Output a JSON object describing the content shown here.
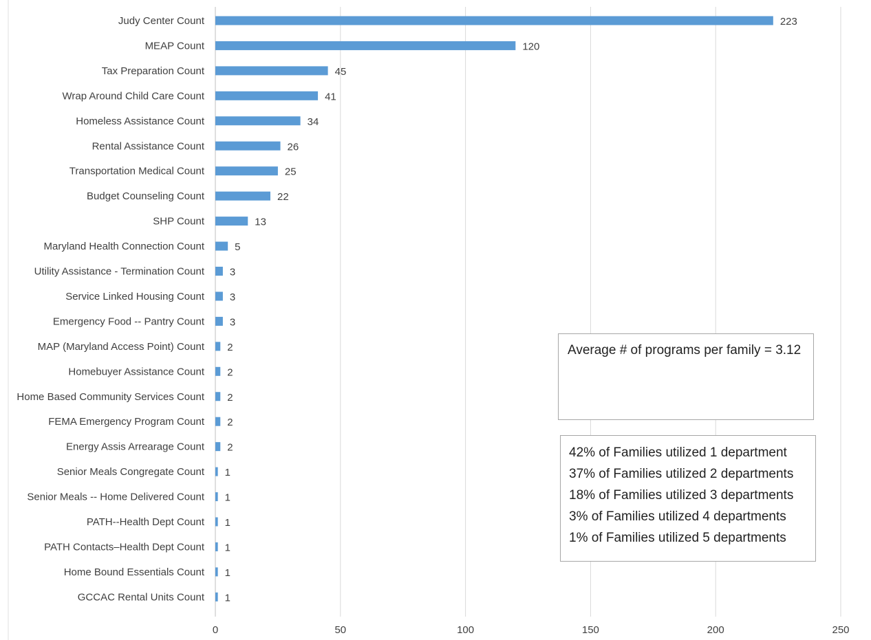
{
  "chart_data": {
    "type": "bar",
    "orientation": "horizontal",
    "categories": [
      "Judy Center Count",
      "MEAP Count",
      "Tax Preparation Count",
      "Wrap Around Child Care Count",
      "Homeless Assistance Count",
      "Rental Assistance Count",
      "Transportation Medical Count",
      "Budget Counseling Count",
      "SHP Count",
      "Maryland Health Connection Count",
      "Utility Assistance - Termination Count",
      "Service Linked Housing Count",
      "Emergency Food -- Pantry Count",
      "MAP (Maryland Access Point) Count",
      "Homebuyer Assistance Count",
      "Home Based Community Services Count",
      "FEMA Emergency Program Count",
      "Energy Assis Arrearage Count",
      "Senior Meals Congregate Count",
      "Senior Meals -- Home Delivered Count",
      "PATH--Health Dept Count",
      "PATH Contacts–Health Dept Count",
      "Home Bound Essentials Count",
      "GCCAC Rental Units Count"
    ],
    "values": [
      223,
      120,
      45,
      41,
      34,
      26,
      25,
      22,
      13,
      5,
      3,
      3,
      3,
      2,
      2,
      2,
      2,
      2,
      1,
      1,
      1,
      1,
      1,
      1
    ],
    "xlim": [
      0,
      250
    ],
    "xticks": [
      "0",
      "50",
      "100",
      "150",
      "200",
      "250"
    ],
    "grid": "vertical",
    "data_labels": true,
    "bar_color": "#5b9bd5",
    "grid_color": "#d9d9d9"
  },
  "annotations": {
    "average": "Average # of programs per family = 3.12",
    "departments": [
      "42% of Families utilized 1 department",
      "37% of Families utilized 2 departments",
      "18% of Families utilized 3 departments",
      "3% of Families utilized 4 departments",
      "1% of Families utilized 5 departments"
    ]
  }
}
